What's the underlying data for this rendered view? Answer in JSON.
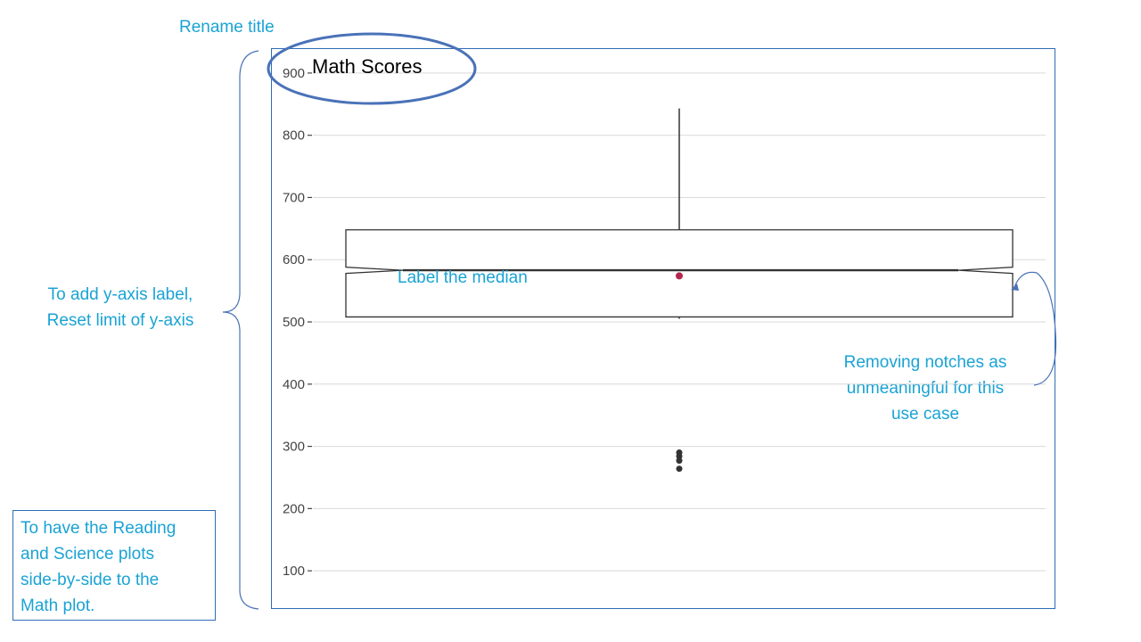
{
  "annotations": {
    "rename_title": "Rename title",
    "y_axis_line1": "To add y-axis label,",
    "y_axis_line2": "Reset limit of y-axis",
    "label_median": "Label the median",
    "notches_line1": "Removing notches as",
    "notches_line2": "unmeaningful for this",
    "notches_line3": "use case",
    "sidebyside_line1": "To have the Reading",
    "sidebyside_line2": "and Science plots",
    "sidebyside_line3": "side-by-side to the",
    "sidebyside_line4": "Math plot."
  },
  "colors": {
    "annotation_text": "#1aa3d4",
    "annotation_shape": "#4a72b8",
    "grid": "#d9d9d9",
    "box_stroke": "#333333",
    "mean_point": "#b5264f"
  },
  "chart_data": {
    "type": "box",
    "title": "Math Scores",
    "xlabel": "",
    "ylabel": "",
    "y_ticks": [
      100,
      200,
      300,
      400,
      500,
      600,
      700,
      800,
      900
    ],
    "ylim": [
      40,
      940
    ],
    "grid": true,
    "notched": true,
    "box": {
      "min": 505,
      "q1": 508,
      "median": 583,
      "q3": 648,
      "max": 843,
      "notch_low": 578,
      "notch_high": 588,
      "mean": 574
    },
    "outliers": [
      290,
      284,
      277,
      264
    ]
  }
}
